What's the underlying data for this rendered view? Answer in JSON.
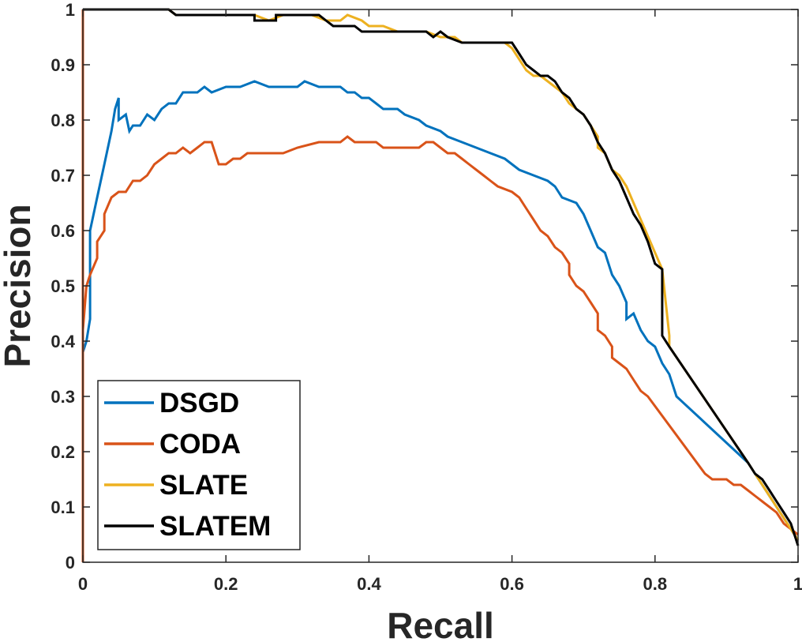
{
  "chart_data": {
    "type": "line",
    "title": "",
    "xlabel": "Recall",
    "ylabel": "Precision",
    "xlim": [
      0,
      1
    ],
    "ylim": [
      0,
      1
    ],
    "xticks": [
      0,
      0.2,
      0.4,
      0.6,
      0.8,
      1
    ],
    "yticks": [
      0,
      0.1,
      0.2,
      0.3,
      0.4,
      0.5,
      0.6,
      0.7,
      0.8,
      0.9,
      1
    ],
    "xtick_labels": [
      "0",
      "0.2",
      "0.4",
      "0.6",
      "0.8",
      "1"
    ],
    "ytick_labels": [
      "0",
      "0.1",
      "0.2",
      "0.3",
      "0.4",
      "0.5",
      "0.6",
      "0.7",
      "0.8",
      "0.9",
      "1"
    ],
    "grid": false,
    "legend_position": "bottom-left",
    "series": [
      {
        "name": "DSGD",
        "color": "#0072BD",
        "points": [
          [
            0,
            0.38
          ],
          [
            0.005,
            0.4
          ],
          [
            0.01,
            0.44
          ],
          [
            0.01,
            0.6
          ],
          [
            0.02,
            0.66
          ],
          [
            0.03,
            0.72
          ],
          [
            0.04,
            0.78
          ],
          [
            0.045,
            0.82
          ],
          [
            0.05,
            0.84
          ],
          [
            0.05,
            0.8
          ],
          [
            0.06,
            0.81
          ],
          [
            0.065,
            0.78
          ],
          [
            0.07,
            0.79
          ],
          [
            0.08,
            0.79
          ],
          [
            0.09,
            0.81
          ],
          [
            0.1,
            0.8
          ],
          [
            0.11,
            0.82
          ],
          [
            0.12,
            0.83
          ],
          [
            0.13,
            0.83
          ],
          [
            0.14,
            0.85
          ],
          [
            0.16,
            0.85
          ],
          [
            0.17,
            0.86
          ],
          [
            0.18,
            0.85
          ],
          [
            0.2,
            0.86
          ],
          [
            0.22,
            0.86
          ],
          [
            0.24,
            0.87
          ],
          [
            0.26,
            0.86
          ],
          [
            0.28,
            0.86
          ],
          [
            0.3,
            0.86
          ],
          [
            0.31,
            0.87
          ],
          [
            0.33,
            0.86
          ],
          [
            0.36,
            0.86
          ],
          [
            0.37,
            0.85
          ],
          [
            0.38,
            0.85
          ],
          [
            0.39,
            0.84
          ],
          [
            0.4,
            0.84
          ],
          [
            0.41,
            0.83
          ],
          [
            0.42,
            0.82
          ],
          [
            0.44,
            0.82
          ],
          [
            0.45,
            0.81
          ],
          [
            0.47,
            0.8
          ],
          [
            0.48,
            0.79
          ],
          [
            0.5,
            0.78
          ],
          [
            0.51,
            0.77
          ],
          [
            0.53,
            0.76
          ],
          [
            0.55,
            0.75
          ],
          [
            0.57,
            0.74
          ],
          [
            0.59,
            0.73
          ],
          [
            0.61,
            0.71
          ],
          [
            0.63,
            0.7
          ],
          [
            0.65,
            0.69
          ],
          [
            0.66,
            0.68
          ],
          [
            0.67,
            0.66
          ],
          [
            0.69,
            0.65
          ],
          [
            0.7,
            0.63
          ],
          [
            0.71,
            0.6
          ],
          [
            0.72,
            0.57
          ],
          [
            0.73,
            0.56
          ],
          [
            0.74,
            0.52
          ],
          [
            0.75,
            0.5
          ],
          [
            0.76,
            0.47
          ],
          [
            0.76,
            0.44
          ],
          [
            0.77,
            0.45
          ],
          [
            0.78,
            0.42
          ],
          [
            0.79,
            0.4
          ],
          [
            0.8,
            0.39
          ],
          [
            0.81,
            0.36
          ],
          [
            0.82,
            0.34
          ],
          [
            0.83,
            0.3
          ],
          [
            0.93,
            0.18
          ],
          [
            0.94,
            0.16
          ],
          [
            0.95,
            0.14
          ],
          [
            0.96,
            0.12
          ],
          [
            0.97,
            0.1
          ],
          [
            0.98,
            0.08
          ],
          [
            0.99,
            0.06
          ],
          [
            1,
            0.04
          ]
        ]
      },
      {
        "name": "CODA",
        "color": "#D95319",
        "points": [
          [
            0,
            0
          ],
          [
            0,
            1
          ],
          [
            0,
            0.42
          ],
          [
            0.005,
            0.5
          ],
          [
            0.01,
            0.52
          ],
          [
            0.02,
            0.55
          ],
          [
            0.02,
            0.58
          ],
          [
            0.03,
            0.6
          ],
          [
            0.03,
            0.63
          ],
          [
            0.04,
            0.66
          ],
          [
            0.05,
            0.67
          ],
          [
            0.06,
            0.67
          ],
          [
            0.07,
            0.69
          ],
          [
            0.08,
            0.69
          ],
          [
            0.09,
            0.7
          ],
          [
            0.1,
            0.72
          ],
          [
            0.11,
            0.73
          ],
          [
            0.12,
            0.74
          ],
          [
            0.13,
            0.74
          ],
          [
            0.14,
            0.75
          ],
          [
            0.15,
            0.74
          ],
          [
            0.16,
            0.75
          ],
          [
            0.17,
            0.76
          ],
          [
            0.18,
            0.76
          ],
          [
            0.19,
            0.72
          ],
          [
            0.2,
            0.72
          ],
          [
            0.21,
            0.73
          ],
          [
            0.22,
            0.73
          ],
          [
            0.23,
            0.74
          ],
          [
            0.25,
            0.74
          ],
          [
            0.28,
            0.74
          ],
          [
            0.3,
            0.75
          ],
          [
            0.33,
            0.76
          ],
          [
            0.36,
            0.76
          ],
          [
            0.37,
            0.77
          ],
          [
            0.38,
            0.76
          ],
          [
            0.4,
            0.76
          ],
          [
            0.41,
            0.76
          ],
          [
            0.42,
            0.75
          ],
          [
            0.43,
            0.75
          ],
          [
            0.44,
            0.75
          ],
          [
            0.45,
            0.75
          ],
          [
            0.47,
            0.75
          ],
          [
            0.48,
            0.76
          ],
          [
            0.49,
            0.76
          ],
          [
            0.5,
            0.75
          ],
          [
            0.51,
            0.74
          ],
          [
            0.52,
            0.74
          ],
          [
            0.53,
            0.73
          ],
          [
            0.54,
            0.72
          ],
          [
            0.55,
            0.71
          ],
          [
            0.56,
            0.7
          ],
          [
            0.57,
            0.69
          ],
          [
            0.58,
            0.68
          ],
          [
            0.6,
            0.67
          ],
          [
            0.61,
            0.66
          ],
          [
            0.62,
            0.64
          ],
          [
            0.63,
            0.62
          ],
          [
            0.64,
            0.6
          ],
          [
            0.65,
            0.59
          ],
          [
            0.66,
            0.57
          ],
          [
            0.67,
            0.56
          ],
          [
            0.68,
            0.54
          ],
          [
            0.68,
            0.52
          ],
          [
            0.69,
            0.5
          ],
          [
            0.7,
            0.49
          ],
          [
            0.71,
            0.47
          ],
          [
            0.72,
            0.45
          ],
          [
            0.72,
            0.42
          ],
          [
            0.73,
            0.41
          ],
          [
            0.74,
            0.39
          ],
          [
            0.74,
            0.37
          ],
          [
            0.75,
            0.36
          ],
          [
            0.76,
            0.35
          ],
          [
            0.77,
            0.33
          ],
          [
            0.78,
            0.31
          ],
          [
            0.79,
            0.3
          ],
          [
            0.87,
            0.16
          ],
          [
            0.88,
            0.15
          ],
          [
            0.9,
            0.15
          ],
          [
            0.91,
            0.14
          ],
          [
            0.92,
            0.14
          ],
          [
            0.93,
            0.13
          ],
          [
            0.94,
            0.12
          ],
          [
            0.95,
            0.11
          ],
          [
            0.96,
            0.1
          ],
          [
            0.97,
            0.09
          ],
          [
            0.98,
            0.07
          ],
          [
            0.99,
            0.06
          ],
          [
            1,
            0.05
          ]
        ]
      },
      {
        "name": "SLATE",
        "color": "#EDB120",
        "points": [
          [
            0,
            1
          ],
          [
            0.12,
            1
          ],
          [
            0.13,
            0.99
          ],
          [
            0.2,
            0.99
          ],
          [
            0.24,
            0.99
          ],
          [
            0.26,
            0.98
          ],
          [
            0.28,
            0.99
          ],
          [
            0.32,
            0.99
          ],
          [
            0.34,
            0.98
          ],
          [
            0.36,
            0.98
          ],
          [
            0.37,
            0.99
          ],
          [
            0.39,
            0.98
          ],
          [
            0.4,
            0.97
          ],
          [
            0.42,
            0.97
          ],
          [
            0.44,
            0.96
          ],
          [
            0.48,
            0.96
          ],
          [
            0.5,
            0.95
          ],
          [
            0.52,
            0.95
          ],
          [
            0.53,
            0.94
          ],
          [
            0.59,
            0.94
          ],
          [
            0.6,
            0.93
          ],
          [
            0.61,
            0.91
          ],
          [
            0.62,
            0.89
          ],
          [
            0.63,
            0.88
          ],
          [
            0.64,
            0.88
          ],
          [
            0.65,
            0.87
          ],
          [
            0.66,
            0.86
          ],
          [
            0.67,
            0.85
          ],
          [
            0.68,
            0.83
          ],
          [
            0.69,
            0.82
          ],
          [
            0.7,
            0.81
          ],
          [
            0.71,
            0.79
          ],
          [
            0.72,
            0.77
          ],
          [
            0.72,
            0.75
          ],
          [
            0.73,
            0.74
          ],
          [
            0.74,
            0.71
          ],
          [
            0.75,
            0.7
          ],
          [
            0.76,
            0.68
          ],
          [
            0.77,
            0.65
          ],
          [
            0.78,
            0.62
          ],
          [
            0.79,
            0.59
          ],
          [
            0.8,
            0.56
          ],
          [
            0.81,
            0.53
          ],
          [
            0.82,
            0.41
          ],
          [
            0.82,
            0.39
          ],
          [
            0.93,
            0.18
          ],
          [
            0.94,
            0.16
          ],
          [
            0.95,
            0.14
          ],
          [
            0.96,
            0.12
          ],
          [
            0.97,
            0.1
          ],
          [
            0.98,
            0.08
          ],
          [
            0.99,
            0.06
          ],
          [
            1,
            0.04
          ]
        ]
      },
      {
        "name": "SLATEM",
        "color": "#000000",
        "points": [
          [
            0,
            1
          ],
          [
            0.12,
            1
          ],
          [
            0.13,
            0.99
          ],
          [
            0.19,
            0.99
          ],
          [
            0.24,
            0.99
          ],
          [
            0.24,
            0.98
          ],
          [
            0.27,
            0.98
          ],
          [
            0.27,
            0.99
          ],
          [
            0.33,
            0.99
          ],
          [
            0.34,
            0.98
          ],
          [
            0.35,
            0.97
          ],
          [
            0.38,
            0.97
          ],
          [
            0.39,
            0.96
          ],
          [
            0.48,
            0.96
          ],
          [
            0.49,
            0.95
          ],
          [
            0.5,
            0.96
          ],
          [
            0.51,
            0.95
          ],
          [
            0.53,
            0.94
          ],
          [
            0.6,
            0.94
          ],
          [
            0.61,
            0.92
          ],
          [
            0.62,
            0.9
          ],
          [
            0.63,
            0.89
          ],
          [
            0.64,
            0.88
          ],
          [
            0.65,
            0.88
          ],
          [
            0.66,
            0.87
          ],
          [
            0.67,
            0.85
          ],
          [
            0.68,
            0.84
          ],
          [
            0.69,
            0.82
          ],
          [
            0.7,
            0.81
          ],
          [
            0.71,
            0.79
          ],
          [
            0.72,
            0.76
          ],
          [
            0.73,
            0.74
          ],
          [
            0.74,
            0.71
          ],
          [
            0.75,
            0.69
          ],
          [
            0.76,
            0.66
          ],
          [
            0.77,
            0.63
          ],
          [
            0.78,
            0.61
          ],
          [
            0.79,
            0.58
          ],
          [
            0.8,
            0.54
          ],
          [
            0.81,
            0.53
          ],
          [
            0.81,
            0.41
          ],
          [
            0.82,
            0.39
          ],
          [
            0.93,
            0.18
          ],
          [
            0.94,
            0.16
          ],
          [
            0.95,
            0.15
          ],
          [
            0.96,
            0.13
          ],
          [
            0.97,
            0.11
          ],
          [
            0.98,
            0.09
          ],
          [
            0.99,
            0.07
          ],
          [
            1,
            0.03
          ]
        ]
      }
    ]
  }
}
